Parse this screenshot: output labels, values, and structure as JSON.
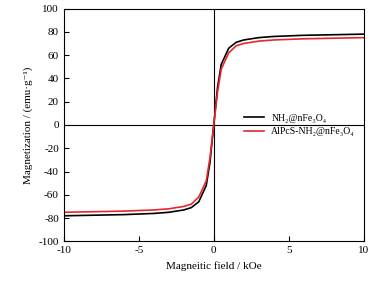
{
  "chart_data": {
    "type": "line",
    "x_label": "Magneitic field / kOe",
    "y_label": "Magnetization / (emu·g⁻¹)",
    "x": [
      -10,
      -8,
      -6,
      -4,
      -3,
      -2,
      -1.5,
      -1,
      -0.5,
      -0.25,
      0,
      0.25,
      0.5,
      1,
      1.5,
      2,
      3,
      4,
      6,
      8,
      10
    ],
    "series": [
      {
        "name": "NH₂@nFe₃O₄",
        "color": "#000000",
        "values": [
          -78,
          -77.5,
          -77,
          -76,
          -75,
          -73,
          -71,
          -66,
          -52,
          -32,
          0,
          32,
          52,
          66,
          71,
          73,
          75,
          76,
          77,
          77.5,
          78
        ]
      },
      {
        "name": "AlPcS-NH₂@nFe₃O₄",
        "color": "#e8262b",
        "values": [
          -75,
          -74.5,
          -74,
          -73,
          -72,
          -70,
          -68,
          -62,
          -48,
          -28,
          0,
          28,
          48,
          62,
          68,
          70,
          72,
          73,
          74,
          74.5,
          75
        ]
      }
    ],
    "xlim": [
      -10,
      10
    ],
    "xticks": [
      -10,
      -5,
      0,
      5,
      10
    ],
    "ylim": [
      -100,
      100
    ],
    "yticks": [
      -100,
      -80,
      -60,
      -40,
      -20,
      0,
      20,
      40,
      60,
      80,
      100
    ],
    "grid": false,
    "legend": "center right"
  }
}
